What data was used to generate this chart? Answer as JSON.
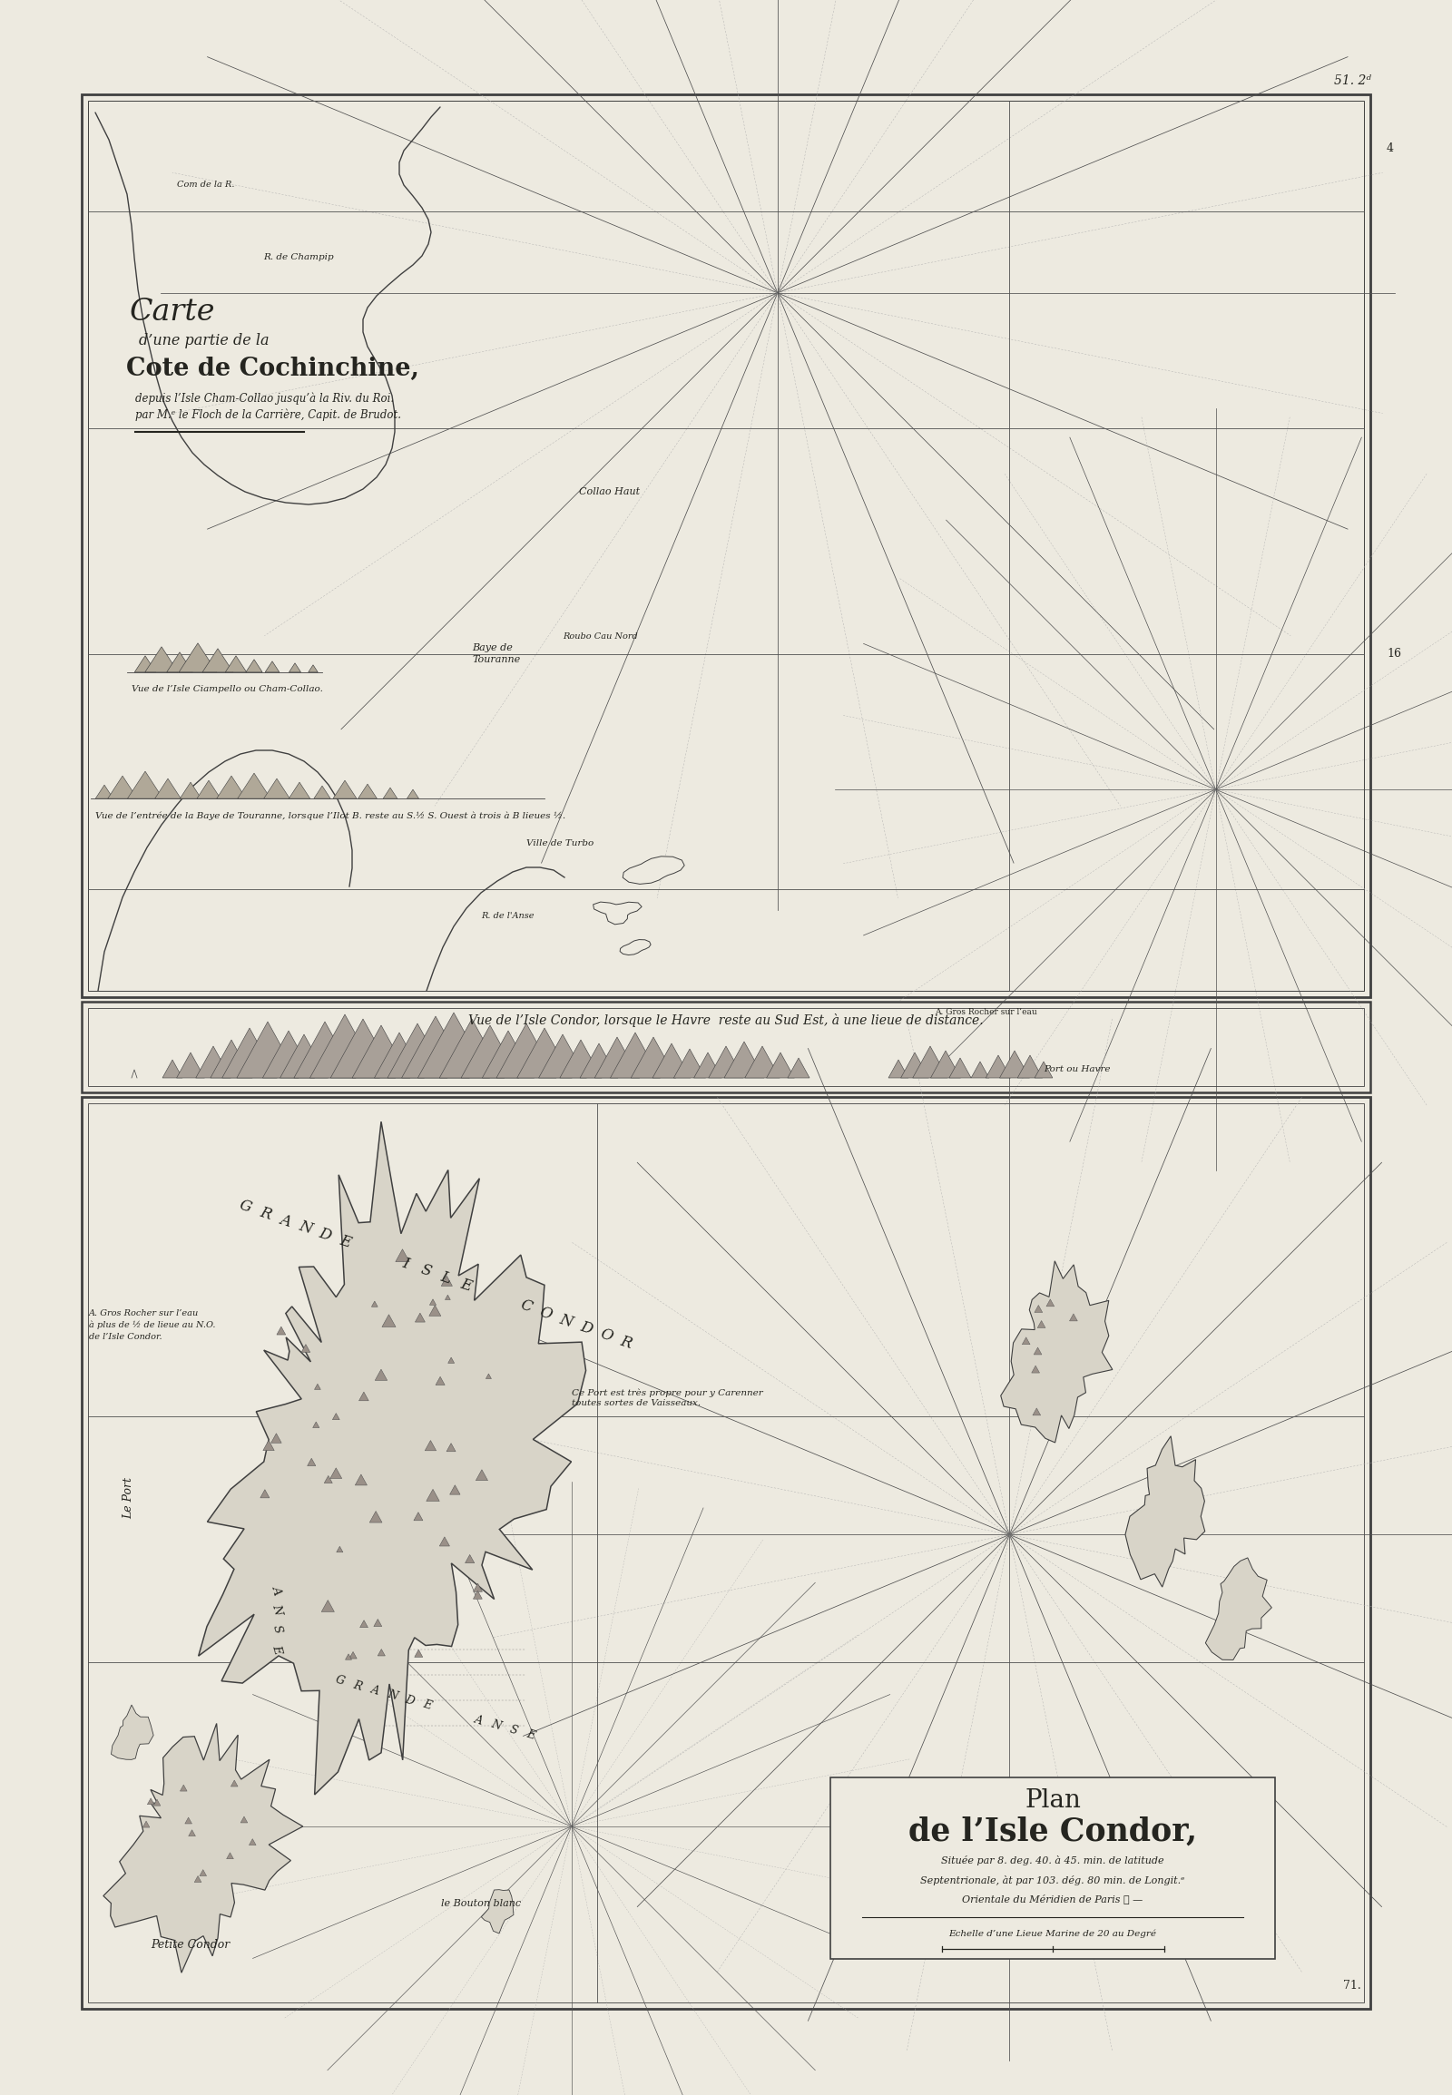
{
  "bg_color": "#edeae0",
  "paper_color": "#edeae0",
  "border_color": "#404040",
  "text_color": "#252520",
  "line_color": "#555550",
  "faint_line_color": "#aaaaaa",
  "solid_line_color": "#505050",
  "map1_title_line1": "Carte",
  "map1_title_line2": "d’une partie de la",
  "map1_title_line3": "Cote de Cochinchine,",
  "map1_title_line4": "depuis l’Isle Cham-Collao jusqu’à la Riv. du Roi.",
  "map1_title_line5": "par M.ᵉ le Floch de la Carrière, Capit. de Brudot.",
  "panorama1_caption": "Vue de l’Isle Ciampello ou Cham-Collao.",
  "panorama2_caption": "Vue de l’entrée de la Baye de Touranne, lorsque l’Ilot B. reste au S.½ S. Ouest à trois à B lieues ½.",
  "panorama3_title": "Vue de l’Isle Condor, lorsque le Havre  reste au Sud Est, à une lieue de distance.",
  "map2_title_line1": "Plan",
  "map2_title_line2": "de l’Isle Condor,",
  "map2_title_line3": "Située par 8. deg. 40. à 45. min. de latitude",
  "map2_title_line4": "Septentrionale, àt par 103. dég. 80 min. de Longit.ᵉ",
  "map2_title_line5": "Orientale du Méridien de Paris ☉ —",
  "map2_title_line6": "Echelle d’une Lieue Marine de 20 au Degré",
  "page_num": "51. 2ᵈ",
  "page_num2": "71.",
  "island_fill": "#d8d4c8",
  "island_edge": "#404040",
  "mountain_fill": "#b0a898",
  "page_width": 16.0,
  "page_height": 23.09
}
